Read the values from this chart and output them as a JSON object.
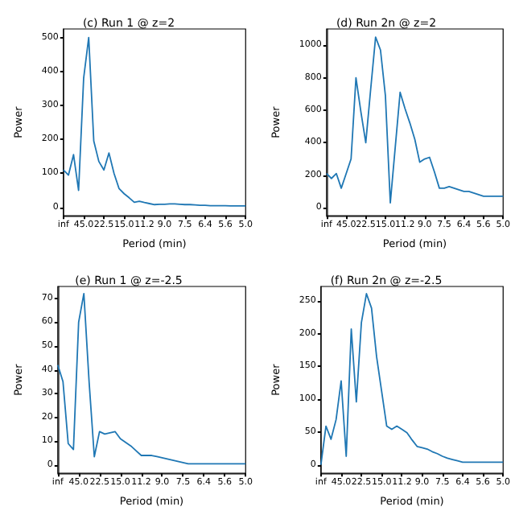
{
  "chart_data": [
    {
      "type": "line",
      "title": "(c) Run 1 @ z=2",
      "xlabel": "Period (min)",
      "ylabel": "Power",
      "categories": [
        "inf",
        null,
        null,
        null,
        "45.0",
        null,
        null,
        null,
        "22.5",
        null,
        null,
        null,
        "15.0",
        null,
        null,
        null,
        "11.2",
        null,
        null,
        null,
        "9.0",
        null,
        null,
        null,
        "7.5",
        null,
        null,
        null,
        "6.4",
        null,
        null,
        null,
        "5.6",
        null,
        null,
        null,
        "5.0"
      ],
      "ylim": [
        -25,
        525
      ],
      "yticks": [
        0,
        100,
        200,
        300,
        400,
        500
      ],
      "grid": false,
      "marker": "none",
      "series": [
        {
          "color": "#1f77b4",
          "values": [
            110,
            95,
            155,
            50,
            380,
            500,
            195,
            135,
            110,
            160,
            100,
            55,
            40,
            28,
            15,
            18,
            14,
            11,
            8,
            9,
            9,
            10,
            10,
            9,
            8,
            8,
            7,
            6,
            6,
            5,
            5,
            5,
            5,
            4,
            4,
            4,
            4
          ]
        }
      ]
    },
    {
      "type": "line",
      "title": "(d) Run 2n @ z=2",
      "xlabel": "Period (min)",
      "ylabel": "Power",
      "categories": [
        "inf",
        null,
        null,
        null,
        "45.0",
        null,
        null,
        null,
        "22.5",
        null,
        null,
        null,
        "15.0",
        null,
        null,
        null,
        "11.2",
        null,
        null,
        null,
        "9.0",
        null,
        null,
        null,
        "7.5",
        null,
        null,
        null,
        "6.4",
        null,
        null,
        null,
        "5.6",
        null,
        null,
        null,
        "5.0"
      ],
      "ylim": [
        -50,
        1100
      ],
      "yticks": [
        0,
        200,
        400,
        600,
        800,
        1000
      ],
      "grid": false,
      "marker": "none",
      "series": [
        {
          "color": "#1f77b4",
          "values": [
            210,
            180,
            210,
            120,
            210,
            300,
            800,
            590,
            400,
            730,
            1050,
            970,
            690,
            30,
            370,
            710,
            610,
            520,
            420,
            280,
            300,
            310,
            220,
            120,
            120,
            130,
            120,
            110,
            100,
            100,
            90,
            80,
            70,
            70,
            70,
            70,
            70
          ]
        }
      ]
    },
    {
      "type": "line",
      "title": "(e) Run 1 @ z=-2.5",
      "xlabel": "Period (min)",
      "ylabel": "Power",
      "categories": [
        "inf",
        null,
        null,
        null,
        "45.0",
        null,
        null,
        null,
        "22.5",
        null,
        null,
        null,
        "15.0",
        null,
        null,
        null,
        "11.2",
        null,
        null,
        null,
        "9.0",
        null,
        null,
        null,
        "7.5",
        null,
        null,
        null,
        "6.4",
        null,
        null,
        null,
        "5.6",
        null,
        null,
        null,
        "5.0"
      ],
      "ylim": [
        -3.5,
        75
      ],
      "yticks": [
        0,
        10,
        20,
        30,
        40,
        50,
        60,
        70
      ],
      "grid": false,
      "marker": "none",
      "series": [
        {
          "color": "#1f77b4",
          "values": [
            42,
            35,
            9,
            6.5,
            60,
            72,
            35,
            3.5,
            14,
            13,
            13.5,
            14,
            11,
            9.5,
            8,
            6,
            4,
            4,
            4,
            3.5,
            3,
            2.5,
            2,
            1.5,
            1,
            0.5,
            0.5,
            0.5,
            0.5,
            0.5,
            0.5,
            0.5,
            0.5,
            0.5,
            0.5,
            0.5,
            0.5
          ]
        }
      ]
    },
    {
      "type": "line",
      "title": "(f) Run 2n @ z=-2.5",
      "xlabel": "Period (min)",
      "ylabel": "Power",
      "categories": [
        "inf",
        null,
        null,
        null,
        "45.0",
        null,
        null,
        null,
        "22.5",
        null,
        null,
        null,
        "15.0",
        null,
        null,
        null,
        "11.2",
        null,
        null,
        null,
        "9.0",
        null,
        null,
        null,
        "7.5",
        null,
        null,
        null,
        "6.4",
        null,
        null,
        null,
        "5.6",
        null,
        null,
        null,
        "5.0"
      ],
      "ylim": [
        -13,
        272
      ],
      "yticks": [
        0,
        50,
        100,
        150,
        200,
        250
      ],
      "grid": false,
      "marker": "none",
      "series": [
        {
          "color": "#1f77b4",
          "values": [
            0,
            59,
            39,
            69,
            128,
            13,
            207,
            96,
            217,
            261,
            239,
            165,
            112,
            59,
            54,
            59,
            54,
            49,
            38,
            28,
            26,
            24,
            20,
            17,
            13,
            10,
            8,
            6,
            4,
            4,
            4,
            4,
            4,
            4,
            4,
            4,
            4
          ]
        }
      ]
    }
  ]
}
